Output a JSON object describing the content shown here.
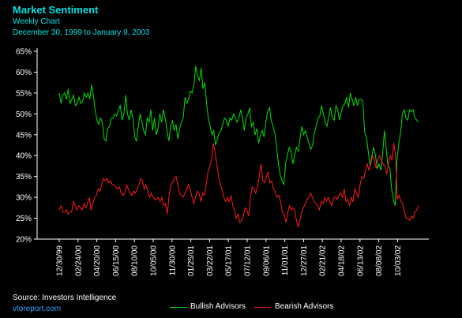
{
  "header": {
    "title": "Market Sentiment",
    "subtitle": "Weekly Chart",
    "date_range": "December 30, 1999 to January 9, 2003"
  },
  "footer": {
    "source": "Source: Investors Intelligence",
    "site": "vtoreport.com"
  },
  "colors": {
    "background": "#000000",
    "axis": "#ffffff",
    "title": "#00e0e0",
    "bullish": "#00e000",
    "bearish": "#ff1a1a",
    "site_link": "#2aa7ff"
  },
  "chart_data": {
    "type": "line",
    "title": "Market Sentiment",
    "xlabel": "",
    "ylabel": "",
    "ylim": [
      20,
      65
    ],
    "yticks": [
      20,
      25,
      30,
      35,
      40,
      45,
      50,
      55,
      60,
      65
    ],
    "ytick_labels": [
      "20%",
      "25%",
      "30%",
      "35%",
      "40%",
      "45%",
      "50%",
      "55%",
      "60%",
      "65%"
    ],
    "xtick_labels": [
      "12/30/99",
      "02/24/00",
      "04/20/00",
      "06/15/00",
      "08/10/00",
      "10/05/00",
      "11/30/00",
      "01/25/01",
      "03/22/01",
      "05/17/01",
      "07/12/01",
      "09/06/01",
      "11/01/01",
      "12/27/01",
      "02/21/02",
      "04/18/02",
      "06/13/02",
      "08/08/02",
      "10/03/02"
    ],
    "x_start": "12/30/99",
    "x_end": "01/09/03",
    "grid": false,
    "legend": "bottom",
    "series": [
      {
        "name": "Bullish Advisors",
        "values": [
          55,
          52.5,
          54.5,
          55,
          53.5,
          56,
          52.5,
          53.5,
          54.5,
          52,
          52.5,
          54,
          52.5,
          53,
          55,
          54,
          55,
          53.5,
          57,
          54.5,
          51,
          48.5,
          47.5,
          49,
          48,
          44,
          43.5,
          46.5,
          47,
          49,
          49,
          50,
          49.5,
          51,
          52,
          48.5,
          50,
          54.5,
          50,
          48.5,
          51,
          49,
          44.5,
          43.5,
          47,
          50,
          48,
          46,
          45,
          49,
          48,
          51,
          46,
          49,
          45,
          46.5,
          50,
          48,
          51,
          49,
          46,
          43.5,
          47,
          48.5,
          46,
          47.5,
          44,
          46.5,
          48,
          49,
          54,
          52.5,
          53.5,
          55.5,
          55,
          57,
          61.5,
          59,
          58,
          61,
          56,
          57.5,
          52.5,
          49,
          47,
          45,
          46,
          42.5,
          44,
          45.5,
          46,
          47.5,
          49,
          48.5,
          47,
          49,
          48.5,
          50,
          49,
          48,
          49,
          51,
          49,
          46,
          49,
          50,
          51.5,
          47,
          48,
          45,
          46.5,
          43,
          45,
          46,
          44.5,
          48,
          50.5,
          51.5,
          48.5,
          47,
          45.5,
          42,
          38,
          35.5,
          34,
          33,
          38,
          40,
          42,
          41,
          38,
          40,
          42,
          41,
          44,
          47,
          45,
          46,
          44.5,
          43,
          41.5,
          42.5,
          45.5,
          47,
          49,
          49.5,
          52,
          50,
          48,
          47,
          49.5,
          51.5,
          49,
          48.5,
          52,
          51,
          48.5,
          50.5,
          52,
          52.5,
          54,
          51.5,
          55,
          53.5,
          52,
          54,
          52,
          53.5,
          53.5,
          53,
          45.5,
          44.5,
          41,
          37.5,
          40,
          42,
          40,
          37,
          38,
          36.5,
          40.5,
          46,
          41.5,
          37.5,
          37,
          32,
          29.5,
          28,
          39,
          43,
          45.5,
          50,
          51,
          49,
          48.5,
          51,
          50.5,
          51,
          49,
          48.5,
          48
        ]
      },
      {
        "name": "Bearish Advisors",
        "values": [
          27,
          28,
          26.5,
          26.5,
          27,
          26,
          26.5,
          26.5,
          29,
          28,
          27,
          28,
          27.5,
          27,
          28.5,
          27.5,
          28.5,
          30,
          27,
          28.5,
          30,
          30.5,
          32,
          31.5,
          33,
          34.5,
          34,
          34.5,
          33.5,
          34,
          33,
          33,
          32.5,
          32,
          32.5,
          31,
          30.5,
          31,
          33,
          32,
          31,
          30.5,
          31.5,
          31,
          32,
          33,
          34.5,
          34,
          32,
          33,
          31.5,
          30,
          31,
          30,
          29.5,
          29.5,
          30,
          29,
          30,
          28,
          28.5,
          26,
          30,
          33,
          33.5,
          34.5,
          35,
          33,
          31,
          30.5,
          30,
          31,
          32,
          33,
          32,
          30,
          28.5,
          30,
          31.5,
          31,
          29,
          31,
          30.5,
          33,
          36,
          37.5,
          39,
          43,
          41,
          38,
          35,
          33,
          32,
          30,
          29,
          30,
          29,
          30.5,
          28,
          27,
          25,
          26,
          24,
          24.5,
          25.5,
          27.5,
          27,
          25.5,
          30,
          32.5,
          32,
          31,
          32.5,
          35,
          38,
          34,
          33.5,
          35,
          36,
          33.5,
          34,
          32,
          31.5,
          30,
          30.5,
          29,
          26.5,
          26,
          24,
          26,
          28,
          27,
          27.5,
          27,
          24.5,
          23,
          24.5,
          26.5,
          27.5,
          28.5,
          29.5,
          30,
          31,
          30,
          29,
          28.5,
          28,
          27,
          29,
          28.5,
          30,
          29,
          30,
          29,
          28,
          30,
          30,
          29.5,
          30.5,
          31,
          30,
          32,
          29,
          29.5,
          28,
          30,
          29,
          32,
          31,
          30,
          33,
          35,
          34.5,
          36.5,
          38,
          36.5,
          38,
          40,
          39,
          37,
          39,
          40,
          39,
          38,
          37.5,
          35.5,
          38,
          40,
          39,
          43,
          40,
          29.5,
          30.5,
          29,
          28.5,
          26.5,
          25,
          25,
          24.5,
          25.5,
          25,
          26.5,
          27,
          28
        ]
      }
    ]
  },
  "legend": {
    "bullish_label": "Bullish Advisors",
    "bearish_label": "Bearish Advisors"
  }
}
